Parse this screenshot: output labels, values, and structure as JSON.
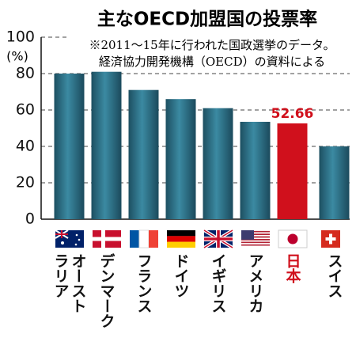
{
  "chart_data": {
    "type": "bar",
    "title": "主なOECD加盟国の投票率",
    "note": [
      "※2011～15年に行われた国政選挙のデータ。",
      "経済協力開発機構（OECD）の資料による"
    ],
    "y_label": "(%)",
    "categories": [
      "オーストラリア",
      "デンマーク",
      "フランス",
      "ドイツ",
      "イギリス",
      "アメリカ",
      "日本",
      "スイス"
    ],
    "values": [
      80,
      81,
      71,
      66,
      61,
      53.5,
      52.66,
      40
    ],
    "value_labels": [
      null,
      null,
      null,
      null,
      null,
      null,
      "52.66",
      null
    ],
    "colors": [
      "#2b6e84",
      "#2b6e84",
      "#2b6e84",
      "#2b6e84",
      "#2b6e84",
      "#2b6e84",
      "#d0101c",
      "#2b6e84"
    ],
    "ylim": [
      0,
      100
    ],
    "yticks": [
      0,
      20,
      40,
      60,
      80,
      100
    ],
    "grid": true
  }
}
